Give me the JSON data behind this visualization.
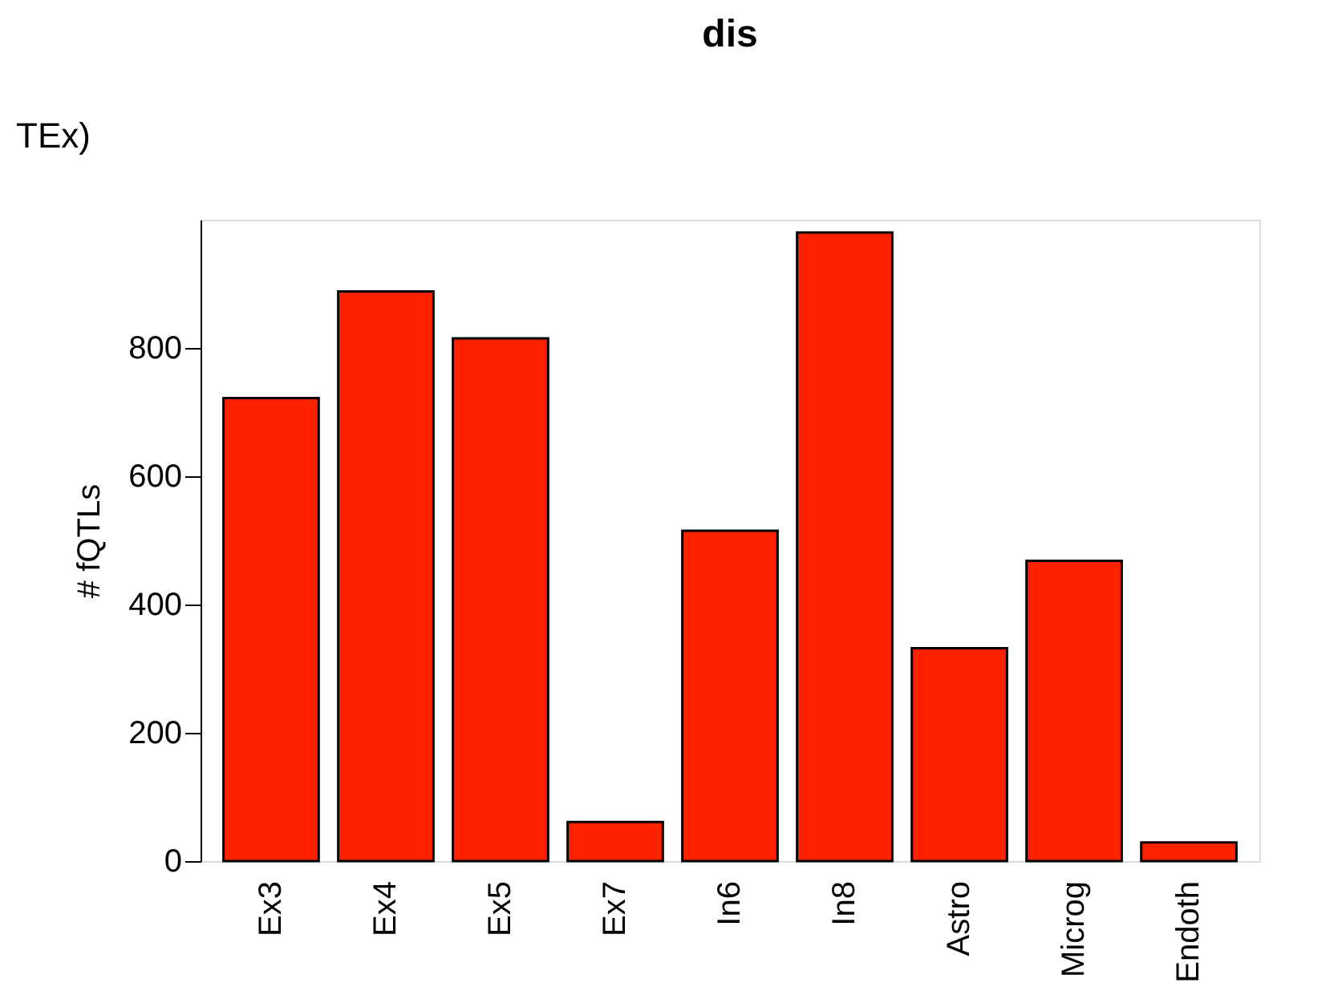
{
  "chart_data": {
    "type": "bar",
    "title": "dis",
    "ylabel": "# fQTLs",
    "categories": [
      "Ex3",
      "Ex4",
      "Ex5",
      "Ex7",
      "In6",
      "In8",
      "Astro",
      "Microg",
      "Endoth"
    ],
    "series": [
      {
        "color": "#ff2200",
        "values": [
          722,
          888,
          815,
          61,
          515,
          980,
          332,
          468,
          29
        ]
      }
    ],
    "ylim": [
      0,
      1000
    ],
    "yticks": [
      0,
      200,
      400,
      600,
      800
    ],
    "grid": false,
    "legend": false,
    "annotations": [
      "TEx)"
    ]
  }
}
